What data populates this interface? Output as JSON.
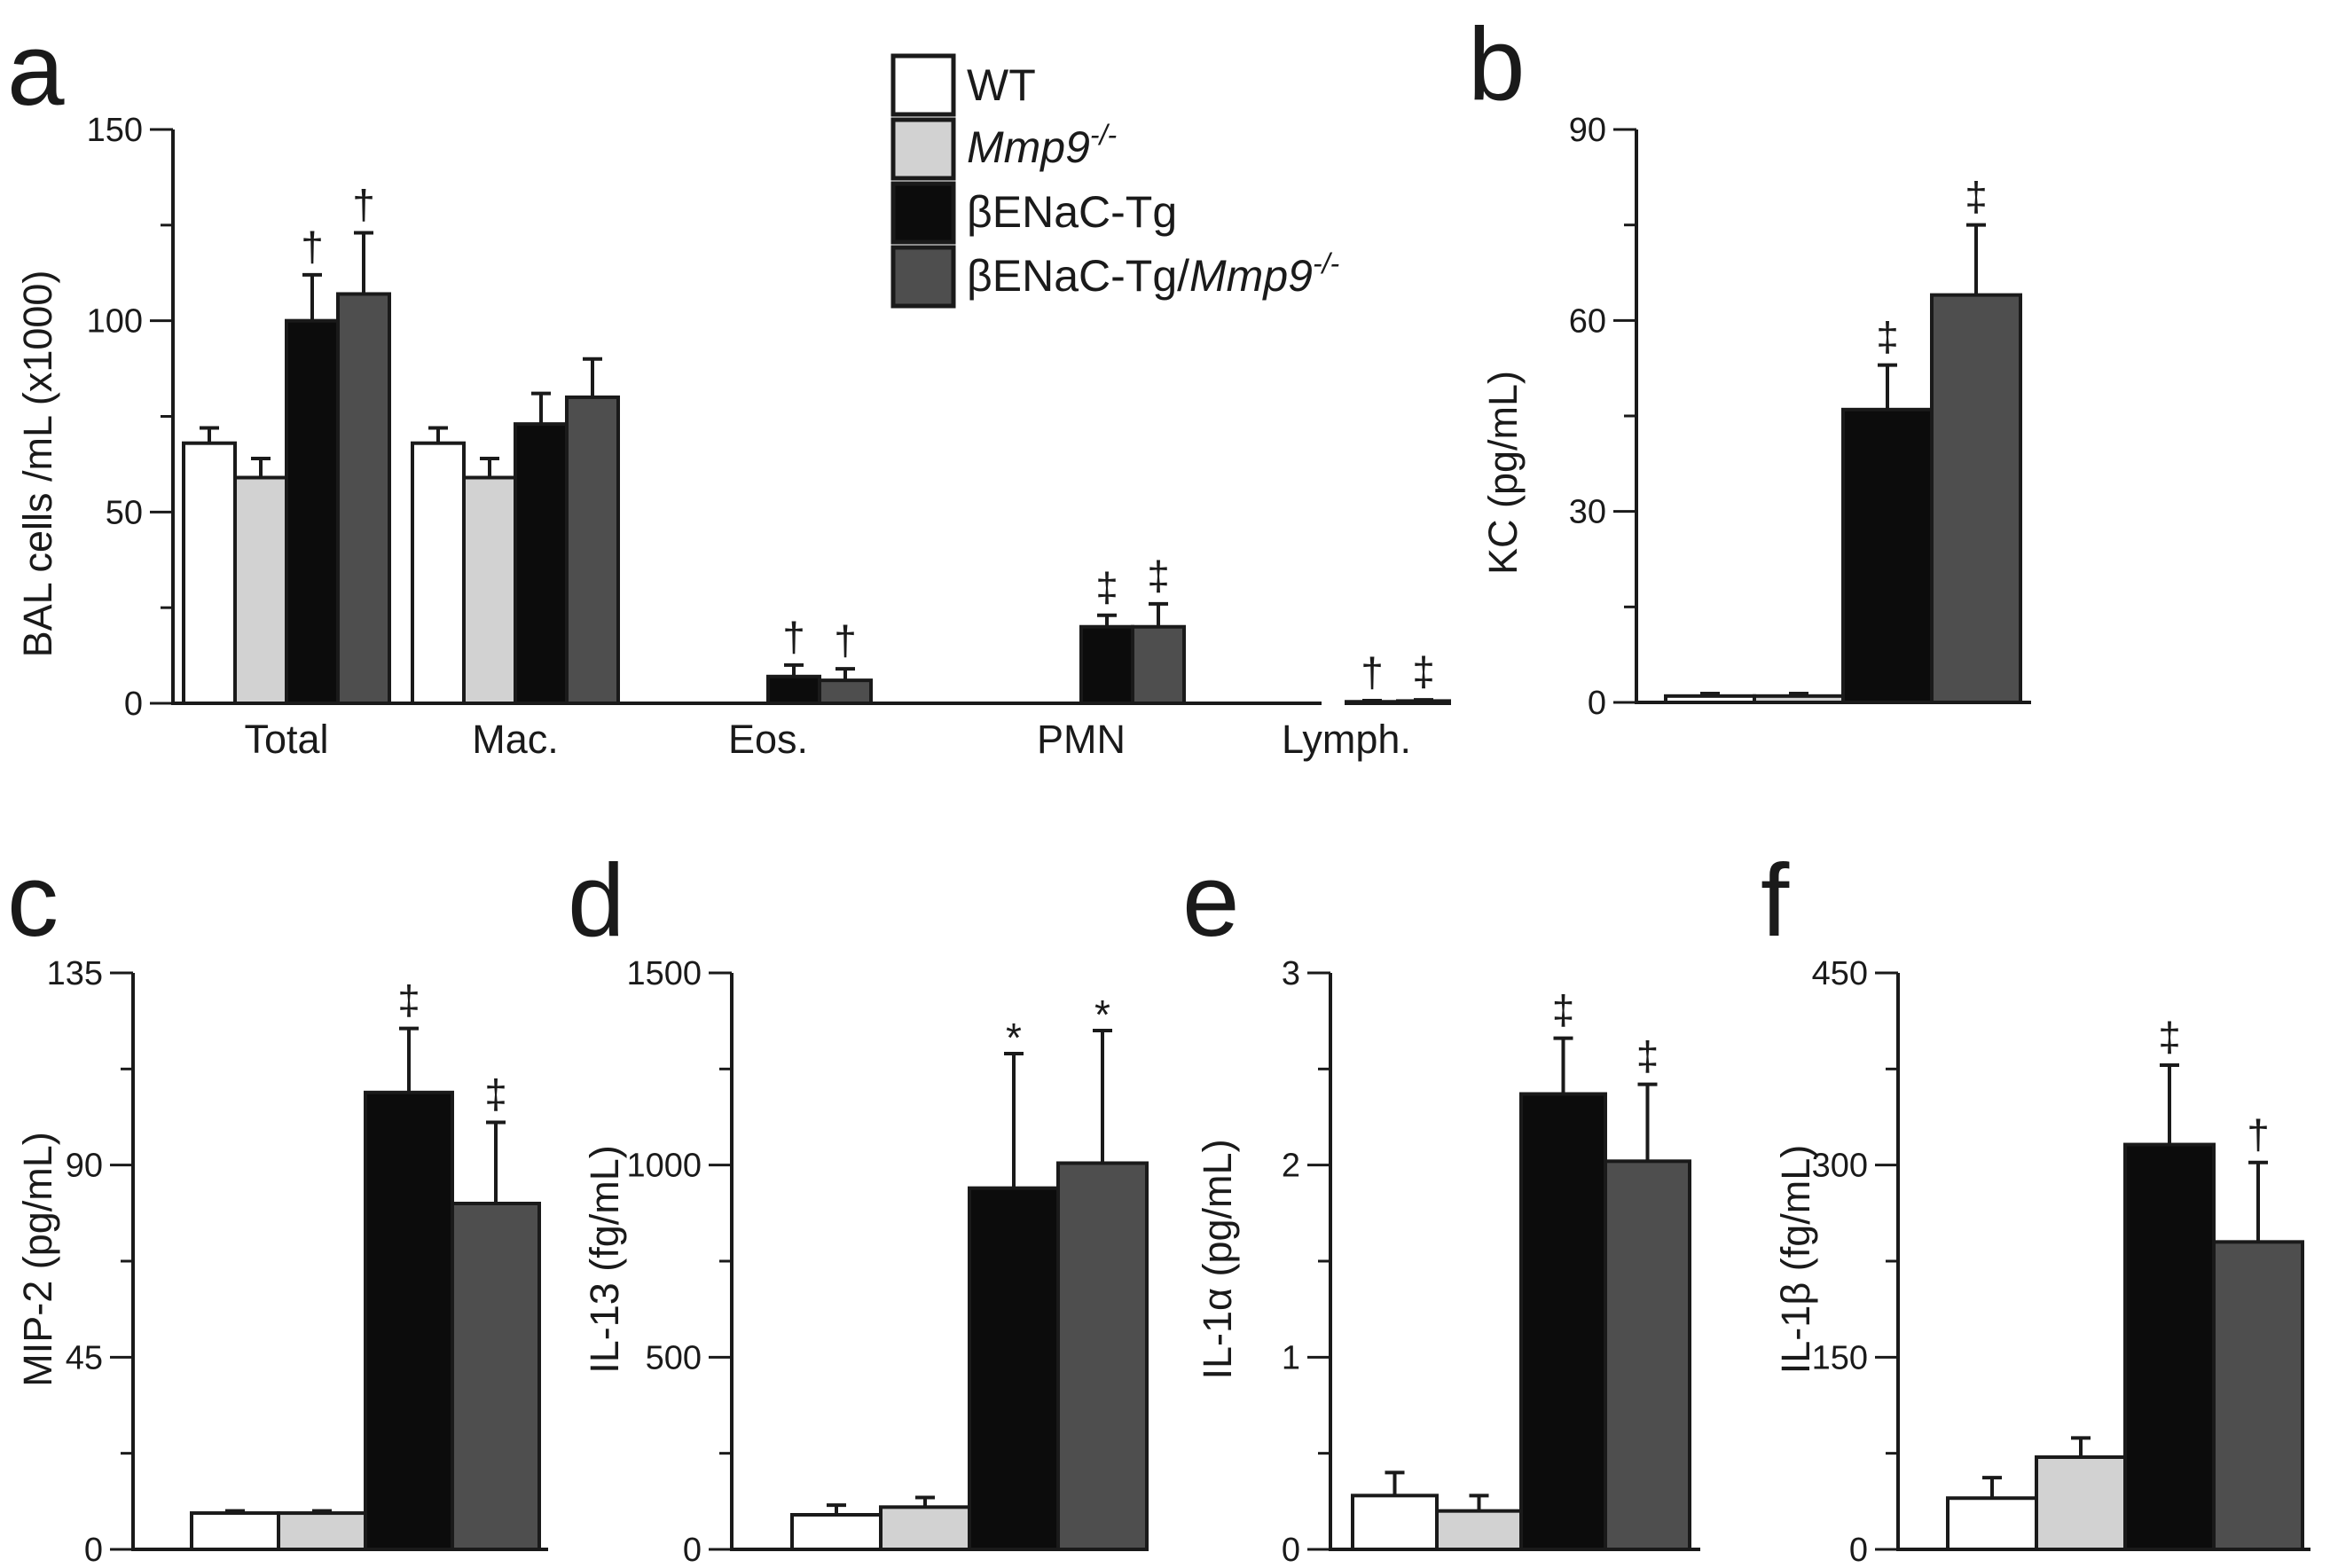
{
  "colors": {
    "WT": "#ffffff",
    "Mmp9": "#d2d2d2",
    "Tg": "#0c0c0c",
    "TgMmp9": "#4e4e4e",
    "axis": "#1a1a1a"
  },
  "legend": [
    {
      "key": "WT",
      "base": "WT",
      "italic": "",
      "sup": ""
    },
    {
      "key": "Mmp9",
      "base": "",
      "italic": "Mmp9",
      "sup": "-/-"
    },
    {
      "key": "Tg",
      "base": "βENaC-Tg",
      "italic": "",
      "sup": ""
    },
    {
      "key": "TgMmp9",
      "base": "βENaC-Tg/",
      "italic": "Mmp9",
      "sup": "-/-"
    }
  ],
  "chart_data": [
    {
      "id": "a",
      "letter": "a",
      "type": "bar",
      "ylabel": "BAL cells /mL (x1000)",
      "ylim": [
        0,
        150
      ],
      "yticks": [
        "0",
        "50",
        "100",
        "150"
      ],
      "categories": [
        "Total",
        "Mac.",
        "Eos.",
        "PMN",
        "Lymph."
      ],
      "series": [
        {
          "name": "WT",
          "values": [
            68,
            68,
            0,
            0,
            0
          ],
          "errors": [
            4,
            4,
            0,
            0,
            0
          ]
        },
        {
          "name": "Mmp9-/-",
          "values": [
            59,
            59,
            0,
            0,
            0
          ],
          "errors": [
            5,
            5,
            0,
            0,
            0
          ]
        },
        {
          "name": "βENaC-Tg",
          "values": [
            100,
            73,
            7,
            20,
            0.4
          ],
          "errors": [
            12,
            8,
            3,
            3,
            0.3
          ]
        },
        {
          "name": "βENaC-Tg/Mmp9-/-",
          "values": [
            107,
            80,
            6,
            20,
            0.6
          ],
          "errors": [
            16,
            10,
            3,
            6,
            0.3
          ]
        }
      ],
      "annotations": [
        [
          "",
          "",
          "†",
          "†"
        ],
        [
          "",
          "",
          "",
          ""
        ],
        [
          "",
          "",
          "†",
          "†"
        ],
        [
          "",
          "",
          "‡",
          "‡"
        ],
        [
          "",
          "",
          "†",
          "‡"
        ]
      ]
    },
    {
      "id": "b",
      "letter": "b",
      "type": "bar",
      "ylabel": "KC (pg/mL)",
      "ylim": [
        0,
        90
      ],
      "yticks": [
        "0",
        "30",
        "60",
        "90"
      ],
      "values": [
        1,
        1,
        46,
        64
      ],
      "errors": [
        0.4,
        0.4,
        7,
        11
      ],
      "annotations": [
        "",
        "",
        "‡",
        "‡"
      ]
    },
    {
      "id": "c",
      "letter": "c",
      "type": "bar",
      "ylabel": "MIP-2 (pg/mL)",
      "ylim": [
        0,
        135
      ],
      "yticks": [
        "0",
        "45",
        "90",
        "135"
      ],
      "values": [
        8.5,
        8.5,
        107,
        81
      ],
      "errors": [
        0.5,
        0.5,
        15,
        19
      ],
      "annotations": [
        "",
        "",
        "‡",
        "‡"
      ]
    },
    {
      "id": "d",
      "letter": "d",
      "type": "bar",
      "ylabel": "IL-13 (fg/mL)",
      "ylim": [
        0,
        1500
      ],
      "yticks": [
        "0",
        "500",
        "1000",
        "1500"
      ],
      "values": [
        90,
        110,
        940,
        1005
      ],
      "errors": [
        25,
        25,
        350,
        345
      ],
      "annotations": [
        "",
        "",
        "*",
        "*"
      ]
    },
    {
      "id": "e",
      "letter": "e",
      "type": "bar",
      "ylabel": "IL-1α (pg/mL)",
      "ylim": [
        0,
        3
      ],
      "yticks": [
        "0",
        "1",
        "2",
        "3"
      ],
      "values": [
        0.28,
        0.2,
        2.37,
        2.02
      ],
      "errors": [
        0.12,
        0.08,
        0.29,
        0.4
      ],
      "annotations": [
        "",
        "",
        "‡",
        "‡"
      ]
    },
    {
      "id": "f",
      "letter": "f",
      "type": "bar",
      "ylabel": "IL-1β (fg/mL)",
      "ylim": [
        0,
        450
      ],
      "yticks": [
        "0",
        "150",
        "300",
        "450"
      ],
      "values": [
        40,
        72,
        316,
        240
      ],
      "errors": [
        16,
        15,
        62,
        62
      ],
      "annotations": [
        "",
        "",
        "‡",
        "†"
      ]
    }
  ]
}
